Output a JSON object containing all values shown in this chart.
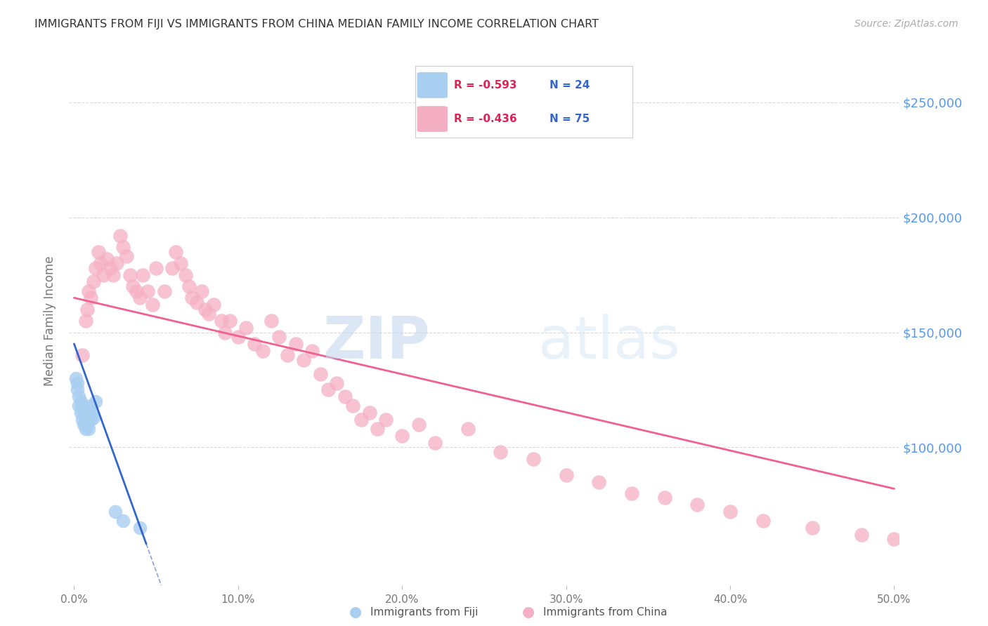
{
  "title": "IMMIGRANTS FROM FIJI VS IMMIGRANTS FROM CHINA MEDIAN FAMILY INCOME CORRELATION CHART",
  "source": "Source: ZipAtlas.com",
  "ylabel": "Median Family Income",
  "xlim": [
    -0.003,
    0.503
  ],
  "ylim": [
    40000,
    270000
  ],
  "xtick_labels": [
    "0.0%",
    "10.0%",
    "20.0%",
    "30.0%",
    "40.0%",
    "50.0%"
  ],
  "xtick_values": [
    0.0,
    0.1,
    0.2,
    0.3,
    0.4,
    0.5
  ],
  "ytick_labels": [
    "$100,000",
    "$150,000",
    "$200,000",
    "$250,000"
  ],
  "ytick_values": [
    100000,
    150000,
    200000,
    250000
  ],
  "fiji_color": "#a8cef0",
  "china_color": "#f5afc5",
  "fiji_line_color": "#3366cc",
  "china_line_color": "#f06090",
  "fiji_R": "-0.593",
  "fiji_N": "24",
  "china_R": "-0.436",
  "china_N": "75",
  "legend_fiji": "Immigrants from Fiji",
  "legend_china": "Immigrants from China",
  "watermark_zip": "ZIP",
  "watermark_atlas": "atlas",
  "grid_color": "#d8d8d8",
  "background_color": "#ffffff",
  "fiji_line_x0": 0.0,
  "fiji_line_x1": 0.044,
  "fiji_line_y0": 145000,
  "fiji_line_y1": 58000,
  "china_line_x0": 0.0,
  "china_line_x1": 0.5,
  "china_line_y0": 165000,
  "china_line_y1": 82000,
  "fiji_x": [
    0.001,
    0.002,
    0.002,
    0.003,
    0.003,
    0.004,
    0.004,
    0.005,
    0.005,
    0.006,
    0.006,
    0.007,
    0.007,
    0.008,
    0.008,
    0.009,
    0.01,
    0.01,
    0.011,
    0.012,
    0.013,
    0.025,
    0.03,
    0.04
  ],
  "fiji_y": [
    130000,
    128000,
    125000,
    122000,
    118000,
    120000,
    115000,
    118000,
    112000,
    115000,
    110000,
    112000,
    108000,
    110000,
    115000,
    108000,
    112000,
    118000,
    115000,
    113000,
    120000,
    72000,
    68000,
    65000
  ],
  "china_x": [
    0.005,
    0.007,
    0.008,
    0.009,
    0.01,
    0.012,
    0.013,
    0.015,
    0.016,
    0.018,
    0.02,
    0.022,
    0.024,
    0.026,
    0.028,
    0.03,
    0.032,
    0.034,
    0.036,
    0.038,
    0.04,
    0.042,
    0.045,
    0.048,
    0.05,
    0.055,
    0.06,
    0.062,
    0.065,
    0.068,
    0.07,
    0.072,
    0.075,
    0.078,
    0.08,
    0.082,
    0.085,
    0.09,
    0.092,
    0.095,
    0.1,
    0.105,
    0.11,
    0.115,
    0.12,
    0.125,
    0.13,
    0.135,
    0.14,
    0.145,
    0.15,
    0.155,
    0.16,
    0.165,
    0.17,
    0.175,
    0.18,
    0.185,
    0.19,
    0.2,
    0.21,
    0.22,
    0.24,
    0.26,
    0.28,
    0.3,
    0.32,
    0.34,
    0.36,
    0.38,
    0.4,
    0.42,
    0.45,
    0.48,
    0.5
  ],
  "china_y": [
    140000,
    155000,
    160000,
    168000,
    165000,
    172000,
    178000,
    185000,
    180000,
    175000,
    182000,
    178000,
    175000,
    180000,
    192000,
    187000,
    183000,
    175000,
    170000,
    168000,
    165000,
    175000,
    168000,
    162000,
    178000,
    168000,
    178000,
    185000,
    180000,
    175000,
    170000,
    165000,
    163000,
    168000,
    160000,
    158000,
    162000,
    155000,
    150000,
    155000,
    148000,
    152000,
    145000,
    142000,
    155000,
    148000,
    140000,
    145000,
    138000,
    142000,
    132000,
    125000,
    128000,
    122000,
    118000,
    112000,
    115000,
    108000,
    112000,
    105000,
    110000,
    102000,
    108000,
    98000,
    95000,
    88000,
    85000,
    80000,
    78000,
    75000,
    72000,
    68000,
    65000,
    62000,
    60000
  ]
}
